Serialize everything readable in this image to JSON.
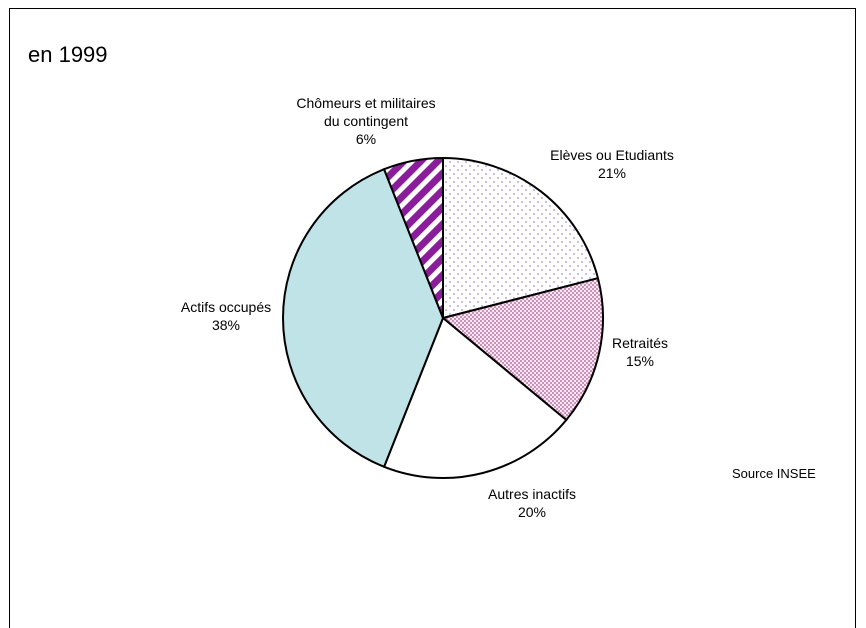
{
  "chart_data": {
    "type": "pie",
    "title": "en 1999",
    "source": "Source INSEE",
    "slices": [
      {
        "key": "eleves",
        "label_lines": [
          "Elèves ou Etudiants"
        ],
        "value_label": "21%",
        "value": 21,
        "color": "#ffffff",
        "pattern": "dots-lavender"
      },
      {
        "key": "retraites",
        "label_lines": [
          "Retraités"
        ],
        "value_label": "15%",
        "value": 15,
        "color": "#f2dcea",
        "pattern": "dots-purple"
      },
      {
        "key": "autres",
        "label_lines": [
          "Autres inactifs"
        ],
        "value_label": "20%",
        "value": 20,
        "color": "#ffffff",
        "pattern": "none"
      },
      {
        "key": "actifs",
        "label_lines": [
          "Actifs occupés"
        ],
        "value_label": "38%",
        "value": 38,
        "color": "#bfe3e6",
        "pattern": "none"
      },
      {
        "key": "chomeurs",
        "label_lines": [
          "Chômeurs et militaires",
          "du contingent"
        ],
        "value_label": "6%",
        "value": 6,
        "color": "#8a1e9a",
        "pattern": "diagonal-stripes"
      }
    ]
  }
}
